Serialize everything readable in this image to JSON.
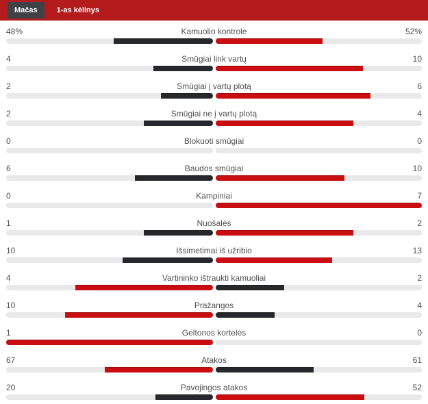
{
  "tabs": [
    {
      "label": "Mačas",
      "active": true
    },
    {
      "label": "1-as kėlinys",
      "active": false
    }
  ],
  "colors": {
    "header_red": "#b31b1d",
    "tab_dark": "#3e4247",
    "bar_red": "#c90d10",
    "bar_dark": "#26282b",
    "track_gray": "#e9e9e9",
    "text_gray": "#4e4e4e"
  },
  "chart_data": {
    "type": "bar",
    "orientation": "horizontal-paired-center-anchored",
    "title": "Mačas",
    "legend_rule": "red bar = side with higher value, dark bar = side with lower value; bar length = value / (home+away) of half track",
    "rows": [
      {
        "label": "Kamuolio kontrolė",
        "home": "48%",
        "away": "52%",
        "home_value": 48,
        "away_value": 52
      },
      {
        "label": "Smūgiai link vartų",
        "home": "4",
        "away": "10",
        "home_value": 4,
        "away_value": 10
      },
      {
        "label": "Smūgiai į vartų plotą",
        "home": "2",
        "away": "6",
        "home_value": 2,
        "away_value": 6
      },
      {
        "label": "Smūgiai ne į vartų plotą",
        "home": "2",
        "away": "4",
        "home_value": 2,
        "away_value": 4
      },
      {
        "label": "Blokuoti smūgiai",
        "home": "0",
        "away": "0",
        "home_value": 0,
        "away_value": 0
      },
      {
        "label": "Baudos smūgiai",
        "home": "6",
        "away": "10",
        "home_value": 6,
        "away_value": 10
      },
      {
        "label": "Kampiniai",
        "home": "0",
        "away": "7",
        "home_value": 0,
        "away_value": 7
      },
      {
        "label": "Nuošalės",
        "home": "1",
        "away": "2",
        "home_value": 1,
        "away_value": 2
      },
      {
        "label": "Išsimetimai iš užribio",
        "home": "10",
        "away": "13",
        "home_value": 10,
        "away_value": 13
      },
      {
        "label": "Vartininko ištraukti kamuoliai",
        "home": "4",
        "away": "2",
        "home_value": 4,
        "away_value": 2
      },
      {
        "label": "Pražangos",
        "home": "10",
        "away": "4",
        "home_value": 10,
        "away_value": 4
      },
      {
        "label": "Geltonos kortelės",
        "home": "1",
        "away": "0",
        "home_value": 1,
        "away_value": 0
      },
      {
        "label": "Atakos",
        "home": "67",
        "away": "61",
        "home_value": 67,
        "away_value": 61
      },
      {
        "label": "Pavojingos atakos",
        "home": "20",
        "away": "52",
        "home_value": 20,
        "away_value": 52
      }
    ]
  }
}
